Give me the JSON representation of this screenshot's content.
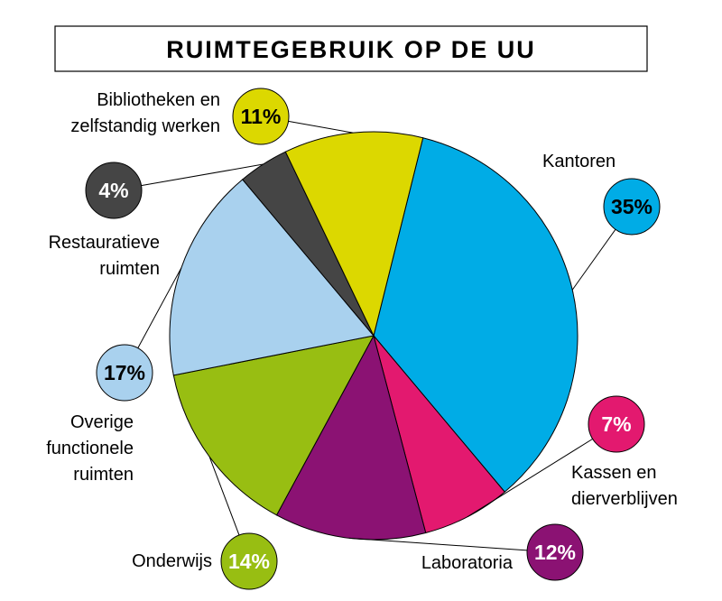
{
  "title": "RUIMTEGEBRUIK OP DE UU",
  "chart_data": {
    "type": "pie",
    "title": "RUIMTEGEBRUIK OP DE UU",
    "slices": [
      {
        "label": [
          "Kantoren"
        ],
        "value": 35,
        "value_label": "35%",
        "color": "#00ace6",
        "text_color": "#000000"
      },
      {
        "label": [
          "Kassen en",
          "dierverblijven"
        ],
        "value": 7,
        "value_label": "7%",
        "color": "#e3196f",
        "text_color": "#ffffff"
      },
      {
        "label": [
          "Laboratoria"
        ],
        "value": 12,
        "value_label": "12%",
        "color": "#8b1273",
        "text_color": "#ffffff"
      },
      {
        "label": [
          "Onderwijs"
        ],
        "value": 14,
        "value_label": "14%",
        "color": "#98be12",
        "text_color": "#ffffff"
      },
      {
        "label": [
          "Overige",
          "functionele",
          "ruimten"
        ],
        "value": 17,
        "value_label": "17%",
        "color": "#a9d1ee",
        "text_color": "#000000"
      },
      {
        "label": [
          "Restauratieve",
          "ruimten"
        ],
        "value": 4,
        "value_label": "4%",
        "color": "#454545",
        "text_color": "#ffffff"
      },
      {
        "label": [
          "Bibliotheken en",
          "zelfstandig werken"
        ],
        "value": 11,
        "value_label": "11%",
        "color": "#dcd800",
        "text_color": "#000000"
      }
    ]
  }
}
